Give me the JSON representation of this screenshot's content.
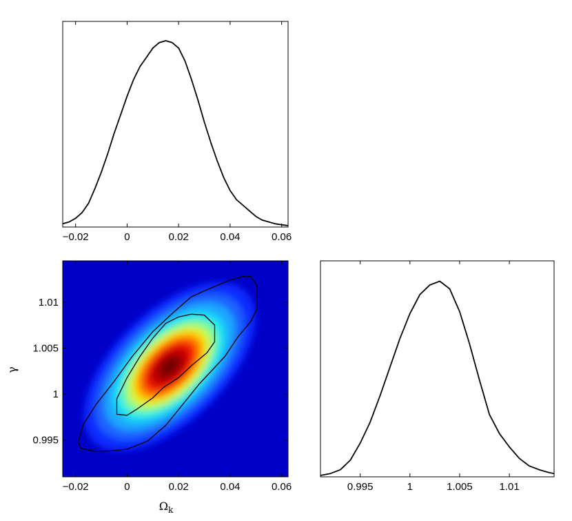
{
  "chart_data": [
    {
      "type": "line",
      "panel": "marginal-omega-k",
      "title": "",
      "xlabel": "",
      "ylabel": "",
      "xlim": [
        -0.025,
        0.0625
      ],
      "ylim": [
        0,
        1
      ],
      "xticks": [
        -0.02,
        0,
        0.02,
        0.04,
        0.06
      ],
      "xtick_labels": [
        "−0.02",
        "0",
        "0.02",
        "0.04",
        "0.06"
      ],
      "x": [
        -0.025,
        -0.0225,
        -0.02,
        -0.0175,
        -0.015,
        -0.0125,
        -0.01,
        -0.0075,
        -0.005,
        -0.0025,
        0,
        0.0025,
        0.005,
        0.0075,
        0.01,
        0.0125,
        0.015,
        0.0175,
        0.02,
        0.0225,
        0.025,
        0.0275,
        0.03,
        0.0325,
        0.035,
        0.0375,
        0.04,
        0.0425,
        0.045,
        0.0475,
        0.05,
        0.0525,
        0.055,
        0.0575,
        0.06,
        0.0625
      ],
      "values": [
        0.01,
        0.02,
        0.04,
        0.07,
        0.12,
        0.2,
        0.29,
        0.39,
        0.5,
        0.6,
        0.7,
        0.79,
        0.86,
        0.91,
        0.96,
        0.99,
        1.0,
        0.99,
        0.96,
        0.89,
        0.79,
        0.68,
        0.56,
        0.45,
        0.35,
        0.26,
        0.19,
        0.14,
        0.11,
        0.08,
        0.05,
        0.03,
        0.02,
        0.01,
        0.005,
        0.0
      ]
    },
    {
      "type": "heatmap",
      "panel": "joint-omega-k-gamma",
      "title": "",
      "xlabel": "Ω",
      "xlabel_sub": "k",
      "ylabel": "γ",
      "xlim": [
        -0.025,
        0.0625
      ],
      "ylim": [
        0.991,
        1.0145
      ],
      "xticks": [
        -0.02,
        0,
        0.02,
        0.04,
        0.06
      ],
      "xtick_labels": [
        "−0.02",
        "0",
        "0.02",
        "0.04",
        "0.06"
      ],
      "yticks": [
        0.995,
        1,
        1.005,
        1.01
      ],
      "ytick_labels": [
        "0.995",
        "1",
        "1.005",
        "1.01"
      ],
      "peak": {
        "x": 0.0165,
        "y": 1.003
      },
      "colormap": [
        "#00008f",
        "#0000ff",
        "#00ffff",
        "#ffff00",
        "#ff0000",
        "#800000"
      ],
      "contours": [
        {
          "level": "68%",
          "points": [
            [
              -0.004,
              0.9978
            ],
            [
              -0.004,
              0.9995
            ],
            [
              0.0,
              1.0018
            ],
            [
              0.005,
              1.0041
            ],
            [
              0.01,
              1.0061
            ],
            [
              0.015,
              1.0077
            ],
            [
              0.02,
              1.0084
            ],
            [
              0.025,
              1.0087
            ],
            [
              0.03,
              1.0086
            ],
            [
              0.034,
              1.0075
            ],
            [
              0.034,
              1.0057
            ],
            [
              0.031,
              1.0045
            ],
            [
              0.025,
              1.0031
            ],
            [
              0.02,
              1.0018
            ],
            [
              0.014,
              1.0007
            ],
            [
              0.01,
              0.9996
            ],
            [
              0.004,
              0.9984
            ],
            [
              0.0,
              0.9977
            ]
          ]
        },
        {
          "level": "95%",
          "points": [
            [
              -0.019,
              0.9948
            ],
            [
              -0.017,
              0.9967
            ],
            [
              -0.012,
              0.9989
            ],
            [
              -0.005,
              1.0014
            ],
            [
              0.002,
              1.0041
            ],
            [
              0.01,
              1.0068
            ],
            [
              0.018,
              1.0089
            ],
            [
              0.025,
              1.0106
            ],
            [
              0.033,
              1.0116
            ],
            [
              0.04,
              1.0124
            ],
            [
              0.045,
              1.0128
            ],
            [
              0.048,
              1.0128
            ],
            [
              0.0505,
              1.0118
            ],
            [
              0.0505,
              1.0093
            ],
            [
              0.048,
              1.0079
            ],
            [
              0.043,
              1.0062
            ],
            [
              0.038,
              1.0041
            ],
            [
              0.033,
              1.0026
            ],
            [
              0.028,
              1.0011
            ],
            [
              0.022,
              0.999
            ],
            [
              0.015,
              0.9966
            ],
            [
              0.008,
              0.9949
            ],
            [
              0.0,
              0.994
            ],
            [
              -0.007,
              0.9938
            ],
            [
              -0.013,
              0.9938
            ],
            [
              -0.018,
              0.9941
            ]
          ]
        }
      ]
    },
    {
      "type": "line",
      "panel": "marginal-gamma",
      "title": "",
      "xlabel": "",
      "ylabel": "",
      "xlim": [
        0.991,
        1.0145
      ],
      "ylim": [
        0,
        1
      ],
      "xticks": [
        0.995,
        1,
        1.005,
        1.01
      ],
      "xtick_labels": [
        "0.995",
        "1",
        "1.005",
        "1.01"
      ],
      "x": [
        0.991,
        0.992,
        0.993,
        0.994,
        0.995,
        0.996,
        0.997,
        0.998,
        0.999,
        1.0,
        1.001,
        1.002,
        1.003,
        1.004,
        1.005,
        1.006,
        1.007,
        1.008,
        1.009,
        1.01,
        1.011,
        1.012,
        1.013,
        1.014,
        1.0145
      ],
      "values": [
        0.0,
        0.01,
        0.03,
        0.08,
        0.17,
        0.28,
        0.42,
        0.57,
        0.72,
        0.85,
        0.95,
        1.0,
        1.02,
        0.98,
        0.86,
        0.69,
        0.5,
        0.32,
        0.22,
        0.15,
        0.09,
        0.05,
        0.03,
        0.015,
        0.01
      ]
    }
  ]
}
